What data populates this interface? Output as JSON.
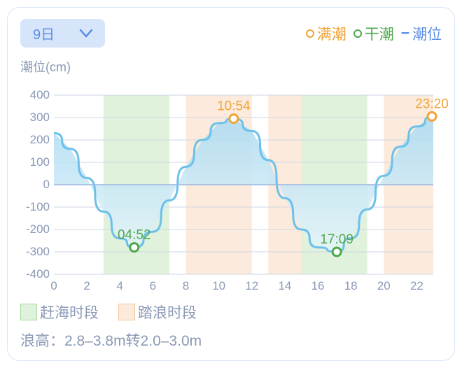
{
  "header": {
    "date_label": "9日",
    "legend": {
      "high_tide": {
        "label": "满潮",
        "color": "#f0a33a"
      },
      "low_tide": {
        "label": "干潮",
        "color": "#4fa84c"
      },
      "tide_level": {
        "label": "潮位",
        "prefix": "−",
        "color": "#5c8de8"
      }
    }
  },
  "chart": {
    "type": "area-line",
    "ylabel": "潮位(cm)",
    "ylim": [
      -400,
      400
    ],
    "ytick_step": 100,
    "xlim": [
      0,
      23
    ],
    "xticks": [
      0,
      2,
      4,
      6,
      8,
      10,
      12,
      14,
      16,
      18,
      20,
      22
    ],
    "axis_color": "#cfd6e4",
    "axis_label_color": "#8a99b5",
    "axis_fontsize": 17,
    "line_color": "#6cc0ea",
    "line_width": 3,
    "fill_top": "#a8daf2",
    "fill_bottom": "#e6f4fa",
    "bands": {
      "ganhai": {
        "color": "#e0f2dc",
        "border": "#a8d79e",
        "ranges": [
          [
            3,
            7
          ],
          [
            15,
            19
          ]
        ]
      },
      "talang": {
        "color": "#fcebdc",
        "border": "#f3c89d",
        "ranges": [
          [
            8,
            12
          ],
          [
            13,
            15
          ],
          [
            20,
            23
          ]
        ]
      }
    },
    "tide_curve": [
      {
        "x": 0,
        "y": 230
      },
      {
        "x": 1,
        "y": 160
      },
      {
        "x": 2,
        "y": 30
      },
      {
        "x": 3,
        "y": -120
      },
      {
        "x": 4,
        "y": -240
      },
      {
        "x": 4.87,
        "y": -280
      },
      {
        "x": 6,
        "y": -210
      },
      {
        "x": 7,
        "y": -70
      },
      {
        "x": 8,
        "y": 80
      },
      {
        "x": 9,
        "y": 200
      },
      {
        "x": 10,
        "y": 275
      },
      {
        "x": 10.9,
        "y": 295
      },
      {
        "x": 12,
        "y": 240
      },
      {
        "x": 13,
        "y": 110
      },
      {
        "x": 14,
        "y": -60
      },
      {
        "x": 15,
        "y": -200
      },
      {
        "x": 16,
        "y": -280
      },
      {
        "x": 17.15,
        "y": -300
      },
      {
        "x": 18,
        "y": -240
      },
      {
        "x": 19,
        "y": -110
      },
      {
        "x": 20,
        "y": 40
      },
      {
        "x": 21,
        "y": 170
      },
      {
        "x": 22,
        "y": 260
      },
      {
        "x": 23,
        "y": 305
      }
    ],
    "markers": {
      "high": [
        {
          "x": 10.9,
          "y": 295,
          "label": "10:54"
        },
        {
          "x": 23.33,
          "y": 305,
          "label": "23:20"
        }
      ],
      "low": [
        {
          "x": 4.87,
          "y": -280,
          "label": "04:52"
        },
        {
          "x": 17.15,
          "y": -300,
          "label": "17:09"
        }
      ],
      "marker_radius": 6,
      "label_fontsize": 19
    }
  },
  "footer": {
    "ganhai_label": "赶海时段",
    "talang_label": "踏浪时段",
    "wave_prefix": "浪高：",
    "wave_text": "2.8–3.8m转2.0–3.0m"
  }
}
